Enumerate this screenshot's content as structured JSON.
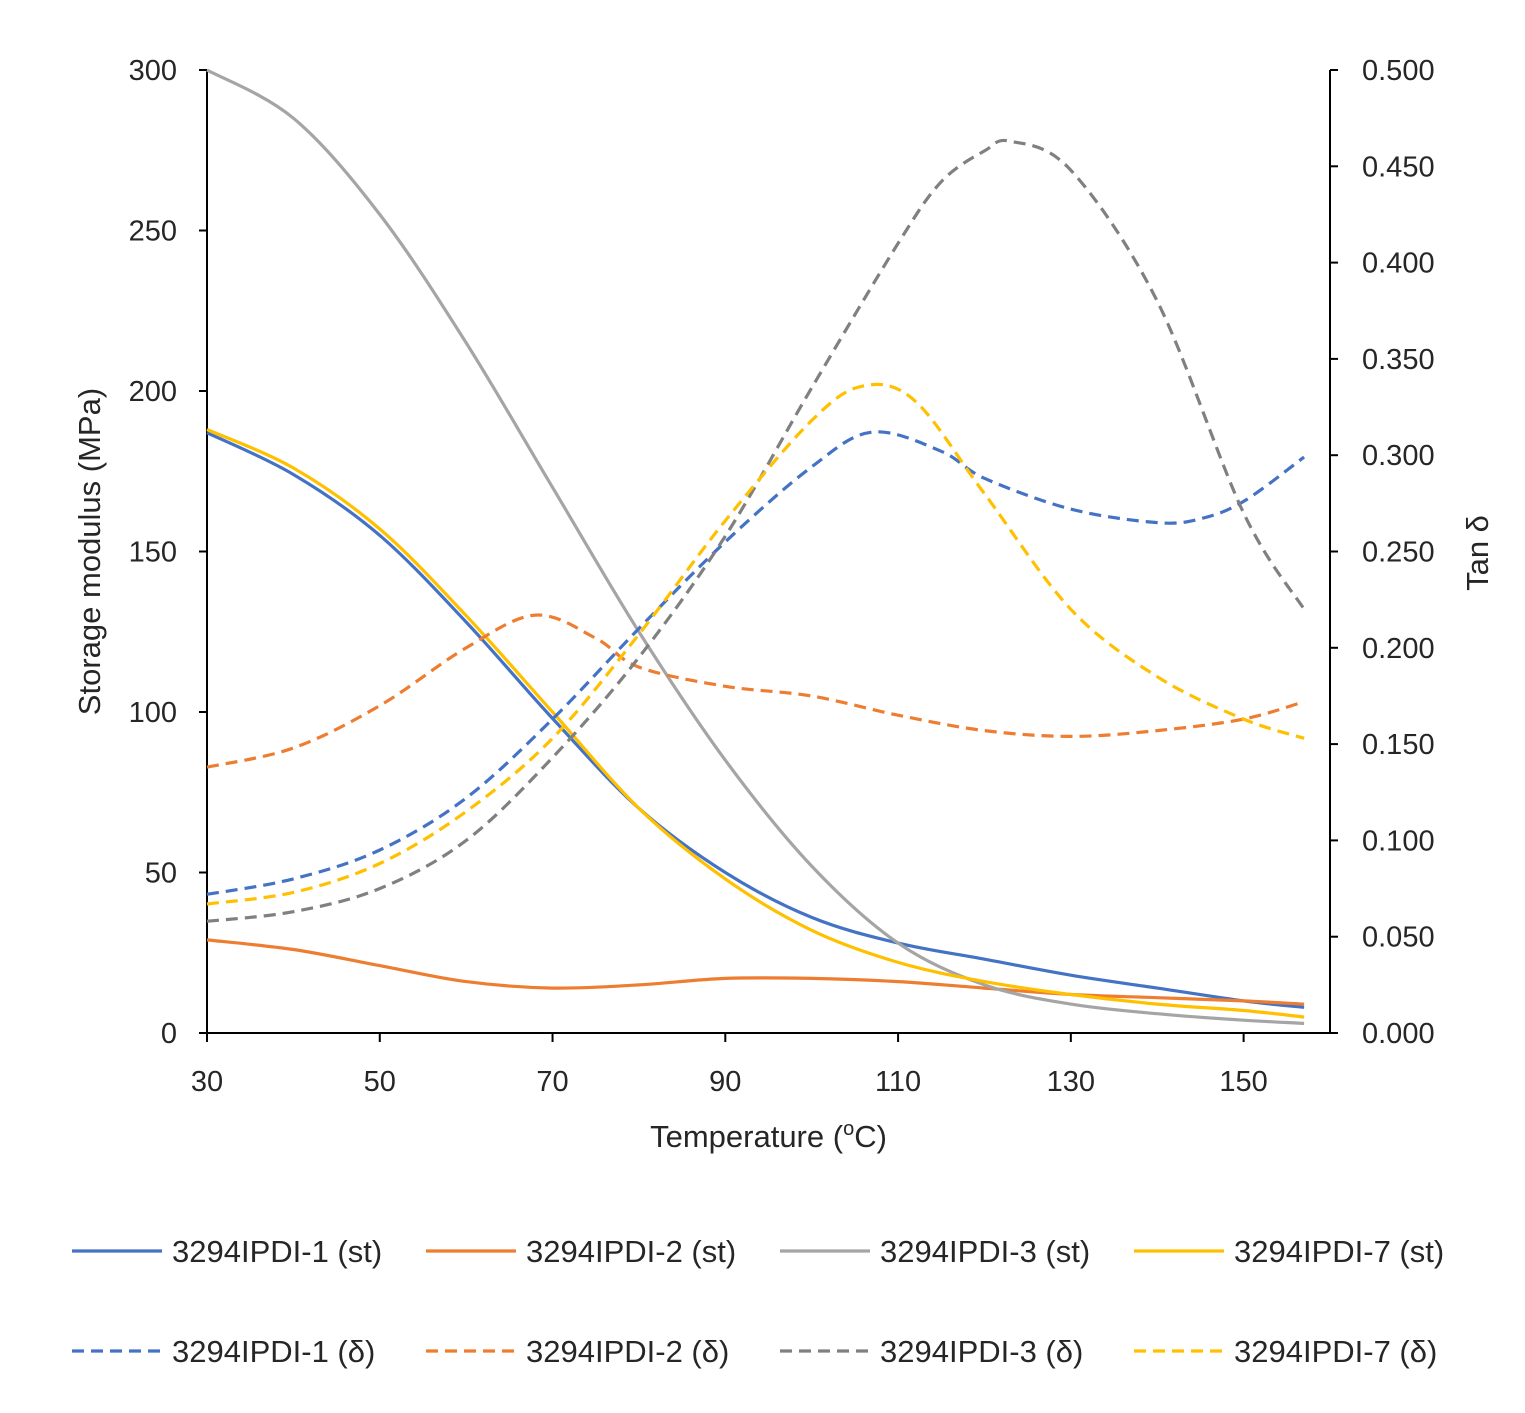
{
  "chart_data": {
    "type": "line",
    "title": "",
    "xlabel": "Temperature (oC)",
    "xlabel_main": "Temperature (",
    "xlabel_sup": "o",
    "xlabel_tail": "C)",
    "ylabel": "Storage modulus (MPa)",
    "y2label": "Tan δ",
    "xlim": [
      30,
      157
    ],
    "ylim": [
      0,
      300
    ],
    "y2lim": [
      0,
      0.5
    ],
    "x_ticks": [
      "30",
      "50",
      "70",
      "90",
      "110",
      "130",
      "150"
    ],
    "y_ticks": [
      "0",
      "50",
      "100",
      "150",
      "200",
      "250",
      "300"
    ],
    "y2_ticks": [
      "0.000",
      "0.050",
      "0.100",
      "0.150",
      "0.200",
      "0.250",
      "0.300",
      "0.350",
      "0.400",
      "0.450",
      "0.500"
    ],
    "legend_position": "bottom",
    "series": [
      {
        "name": "3294IPDI-1 (st)",
        "axis": "left",
        "style": "solid",
        "color": "#4472C4",
        "x": [
          30,
          40,
          50,
          60,
          70,
          80,
          90,
          100,
          110,
          120,
          130,
          140,
          150,
          157
        ],
        "y": [
          187,
          174,
          155,
          128,
          98,
          70,
          50,
          36,
          28,
          23,
          18,
          14,
          10,
          8
        ]
      },
      {
        "name": "3294IPDI-2 (st)",
        "axis": "left",
        "style": "solid",
        "color": "#ED7D31",
        "x": [
          30,
          40,
          50,
          60,
          70,
          80,
          90,
          100,
          110,
          120,
          130,
          140,
          150,
          157
        ],
        "y": [
          29,
          26,
          21,
          16,
          14,
          15,
          17,
          17,
          16,
          14,
          12,
          11,
          10,
          9
        ]
      },
      {
        "name": "3294IPDI-3 (st)",
        "axis": "left",
        "style": "solid",
        "color": "#A5A5A5",
        "x": [
          30,
          40,
          50,
          60,
          70,
          80,
          90,
          100,
          110,
          120,
          130,
          140,
          150,
          157
        ],
        "y": [
          300,
          285,
          255,
          215,
          170,
          125,
          85,
          52,
          28,
          15,
          9,
          6,
          4,
          3
        ]
      },
      {
        "name": "3294IPDI-7 (st)",
        "axis": "left",
        "style": "solid",
        "color": "#FFC000",
        "x": [
          30,
          40,
          50,
          60,
          70,
          80,
          90,
          100,
          110,
          120,
          130,
          140,
          150,
          157
        ],
        "y": [
          188,
          176,
          157,
          130,
          100,
          70,
          48,
          32,
          22,
          16,
          12,
          9,
          7,
          5
        ]
      },
      {
        "name": "3294IPDI-1 (δ)",
        "axis": "right",
        "style": "dashed",
        "color": "#4472C4",
        "x": [
          30,
          40,
          50,
          60,
          70,
          80,
          90,
          100,
          107,
          115,
          120,
          130,
          140,
          145,
          150,
          157
        ],
        "y": [
          0.072,
          0.08,
          0.095,
          0.122,
          0.163,
          0.21,
          0.255,
          0.294,
          0.312,
          0.302,
          0.288,
          0.272,
          0.265,
          0.267,
          0.276,
          0.299
        ]
      },
      {
        "name": "3294IPDI-2 (δ)",
        "axis": "right",
        "style": "dashed",
        "color": "#ED7D31",
        "x": [
          30,
          40,
          50,
          60,
          68,
          75,
          80,
          90,
          100,
          110,
          120,
          130,
          140,
          150,
          157
        ],
        "y": [
          0.138,
          0.148,
          0.17,
          0.2,
          0.217,
          0.205,
          0.19,
          0.18,
          0.175,
          0.165,
          0.157,
          0.154,
          0.157,
          0.163,
          0.172
        ]
      },
      {
        "name": "3294IPDI-3 (δ)",
        "axis": "right",
        "style": "dashed",
        "color": "#808080",
        "x": [
          30,
          40,
          50,
          60,
          70,
          80,
          90,
          100,
          110,
          115,
          120,
          123,
          130,
          140,
          150,
          157
        ],
        "y": [
          0.058,
          0.063,
          0.075,
          0.1,
          0.143,
          0.195,
          0.258,
          0.335,
          0.41,
          0.442,
          0.458,
          0.463,
          0.448,
          0.38,
          0.27,
          0.22
        ]
      },
      {
        "name": "3294IPDI-7 (δ)",
        "axis": "right",
        "style": "dashed",
        "color": "#FFC000",
        "x": [
          30,
          40,
          50,
          60,
          70,
          80,
          90,
          100,
          106,
          112,
          120,
          130,
          140,
          150,
          157
        ],
        "y": [
          0.067,
          0.073,
          0.088,
          0.115,
          0.153,
          0.207,
          0.266,
          0.318,
          0.336,
          0.328,
          0.28,
          0.22,
          0.185,
          0.163,
          0.153
        ]
      }
    ]
  }
}
